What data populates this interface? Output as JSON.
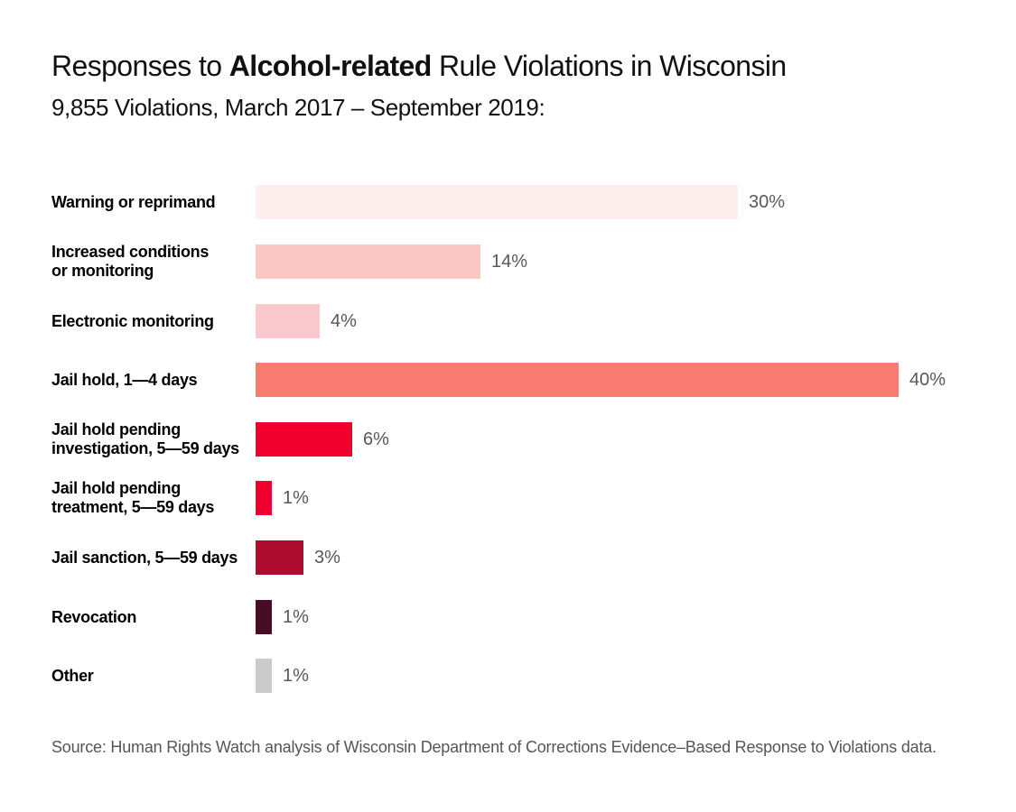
{
  "header": {
    "title_prefix": "Responses to ",
    "title_bold": "Alcohol-related",
    "title_suffix": " Rule Violations in Wisconsin",
    "subtitle": "9,855 Violations, March 2017 – September 2019:"
  },
  "chart_data": {
    "type": "bar",
    "orientation": "horizontal",
    "title": "Responses to Alcohol-related Rule Violations in Wisconsin",
    "subtitle": "9,855 Violations, March 2017 – September 2019:",
    "unit": "percent",
    "xlim": [
      0,
      40
    ],
    "grid": false,
    "legend": false,
    "categories": [
      "Warning or reprimand",
      "Increased conditions or monitoring",
      "Electronic monitoring",
      "Jail hold, 1—4 days",
      "Jail hold pending investigation, 5—59 days",
      "Jail hold pending treatment, 5—59 days",
      "Jail sanction, 5—59 days",
      "Revocation",
      "Other"
    ],
    "display_labels": [
      "Warning or reprimand",
      "Increased conditions\nor monitoring",
      "Electronic monitoring",
      "Jail hold, 1—4 days",
      "Jail hold pending\ninvestigation, 5—59 days",
      "Jail hold pending\ntreatment, 5—59 days",
      "Jail sanction, 5—59 days",
      "Revocation",
      "Other"
    ],
    "values": [
      30,
      14,
      4,
      40,
      6,
      1,
      3,
      1,
      1
    ],
    "value_labels": [
      "30%",
      "14%",
      "4%",
      "40%",
      "6%",
      "1%",
      "3%",
      "1%",
      "1%"
    ],
    "bar_colors": [
      "#FDEFEE",
      "#FBC8C5",
      "#F9C9CE",
      "#F97C72",
      "#F1002F",
      "#F1002F",
      "#AE0C2F",
      "#470D27",
      "#CBCBCB"
    ]
  },
  "footer": {
    "source": "Source: Human Rights Watch analysis of Wisconsin Department of Corrections Evidence–Based Response to Violations data."
  },
  "style": {
    "background": "#FFFFFF",
    "title_color": "#111111",
    "category_label_color": "#000000",
    "value_label_color": "#58585A",
    "source_color": "#55565A"
  }
}
